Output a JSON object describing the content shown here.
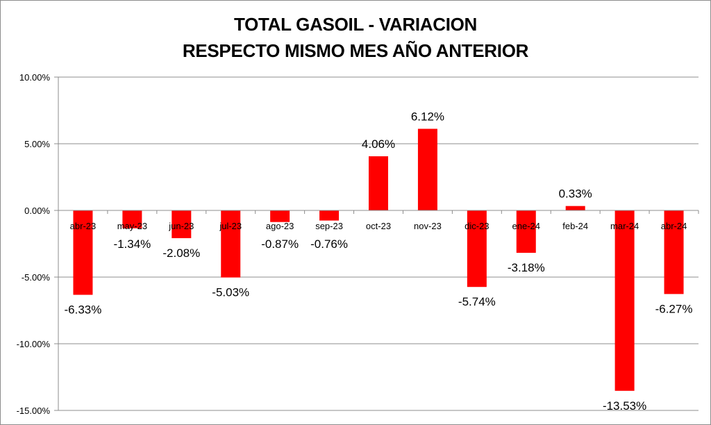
{
  "chart_data": {
    "type": "bar",
    "title_line1": "TOTAL GASOIL - VARIACION",
    "title_line2": "RESPECTO MISMO MES AÑO ANTERIOR",
    "xlabel": "",
    "ylabel": "",
    "categories": [
      "abr-23",
      "may-23",
      "jun-23",
      "jul-23",
      "ago-23",
      "sep-23",
      "oct-23",
      "nov-23",
      "dic-23",
      "ene-24",
      "feb-24",
      "mar-24",
      "abr-24"
    ],
    "values": [
      -6.33,
      -1.34,
      -2.08,
      -5.03,
      -0.87,
      -0.76,
      4.06,
      6.12,
      -5.74,
      -3.18,
      0.33,
      -13.53,
      -6.27
    ],
    "data_labels": [
      "-6.33%",
      "-1.34%",
      "-2.08%",
      "-5.03%",
      "-0.87%",
      "-0.76%",
      "4.06%",
      "6.12%",
      "-5.74%",
      "-3.18%",
      "0.33%",
      "-13.53%",
      "-6.27%"
    ],
    "ylim": [
      -15,
      10
    ],
    "yticks": [
      10,
      5,
      0,
      -5,
      -10,
      -15
    ],
    "ytick_labels": [
      "10.00%",
      "5.00%",
      "0.00%",
      "-5.00%",
      "-10.00%",
      "-15.00%"
    ],
    "grid": true,
    "legend": "none",
    "bar_color": "#ff0000"
  }
}
